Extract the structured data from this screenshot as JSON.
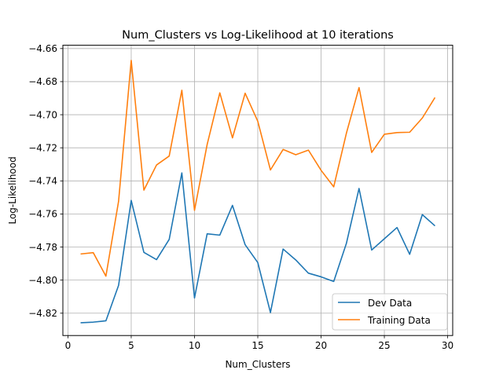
{
  "chart_data": {
    "type": "line",
    "title": "Num_Clusters vs Log-Likelihood at 10 iterations",
    "xlabel": "Num_Clusters",
    "ylabel": "Log-Likelihood",
    "xlim": [
      -0.4,
      30.4
    ],
    "ylim": [
      -4.8335,
      -4.658
    ],
    "xticks": [
      0,
      5,
      10,
      15,
      20,
      25,
      30
    ],
    "xtick_labels": [
      "0",
      "5",
      "10",
      "15",
      "20",
      "25",
      "30"
    ],
    "yticks": [
      -4.82,
      -4.8,
      -4.78,
      -4.76,
      -4.74,
      -4.72,
      -4.7,
      -4.68,
      -4.66
    ],
    "ytick_labels": [
      "−4.82",
      "−4.80",
      "−4.78",
      "−4.76",
      "−4.74",
      "−4.72",
      "−4.70",
      "−4.68",
      "−4.66"
    ],
    "grid": true,
    "legend_position": "lower-right",
    "x": [
      1,
      2,
      3,
      4,
      5,
      6,
      7,
      8,
      9,
      10,
      11,
      12,
      13,
      14,
      15,
      16,
      17,
      18,
      19,
      20,
      21,
      22,
      23,
      24,
      25,
      26,
      27,
      28,
      29
    ],
    "series": [
      {
        "name": "Dev Data",
        "color": "#1f77b4",
        "values": [
          -4.8258,
          -4.8254,
          -4.8246,
          -4.8032,
          -4.7518,
          -4.7832,
          -4.7876,
          -4.7754,
          -4.7352,
          -4.8108,
          -4.772,
          -4.7728,
          -4.7548,
          -4.7786,
          -4.7894,
          -4.8196,
          -4.7812,
          -4.7878,
          -4.7958,
          -4.798,
          -4.8008,
          -4.7778,
          -4.7446,
          -4.7818,
          -4.775,
          -4.7682,
          -4.7844,
          -4.7604,
          -4.7672
        ]
      },
      {
        "name": "Training Data",
        "color": "#ff7f0e",
        "values": [
          -4.7842,
          -4.7834,
          -4.7976,
          -4.7524,
          -4.6672,
          -4.7456,
          -4.7304,
          -4.725,
          -4.6852,
          -4.7578,
          -4.718,
          -4.6868,
          -4.714,
          -4.687,
          -4.704,
          -4.7334,
          -4.721,
          -4.7242,
          -4.7214,
          -4.7336,
          -4.7436,
          -4.7112,
          -4.6836,
          -4.7228,
          -4.7118,
          -4.7108,
          -4.7106,
          -4.702,
          -4.6896
        ]
      }
    ]
  }
}
